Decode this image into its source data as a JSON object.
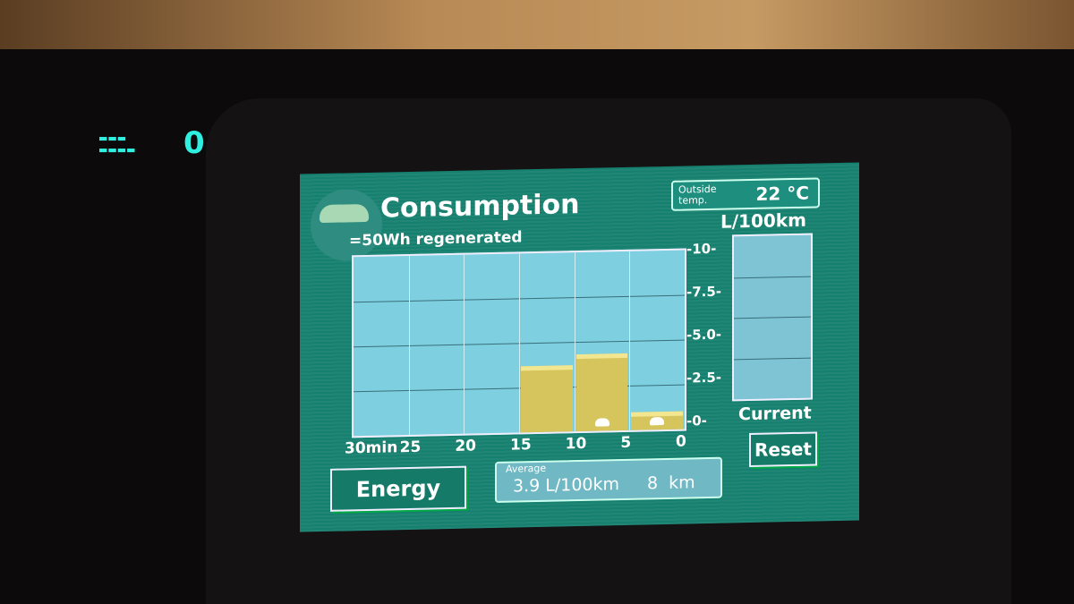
{
  "screen": {
    "title": "Consumption",
    "regen_legend": "=50Wh regenerated",
    "outside_temp_label": "Outside temp.",
    "outside_temp_value": "22 °C",
    "unit": "L/100km",
    "current_label": "Current",
    "reset_label": "Reset",
    "energy_label": "Energy",
    "average_label": "Average",
    "average_value": "3.9 L/100km",
    "distance_value": "8  km"
  },
  "chart_data": {
    "type": "bar",
    "categories": [
      "30-25",
      "25-20",
      "20-15",
      "15-10",
      "10-5",
      "5-0"
    ],
    "values": [
      0,
      0,
      0,
      3.7,
      4.3,
      1.0
    ],
    "regen_icons": [
      0,
      0,
      0,
      0,
      1,
      1
    ],
    "xticks": [
      "30min",
      "25",
      "20",
      "15",
      "10",
      "5",
      "0"
    ],
    "yticks": [
      "10",
      "7.5",
      "5.0",
      "2.5",
      "0"
    ],
    "ylabel": "L/100km",
    "ylim": [
      0,
      10
    ],
    "grid": true,
    "bar_color": "#d6c45c"
  }
}
